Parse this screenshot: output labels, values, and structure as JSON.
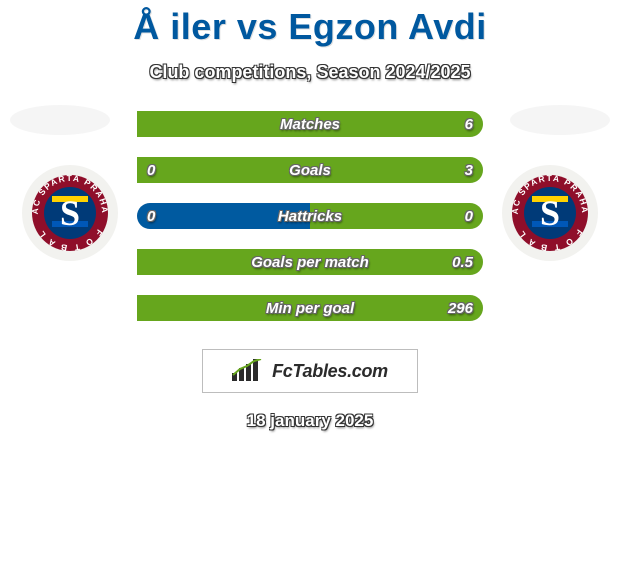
{
  "title": "Å iler vs Egzon Avdi",
  "subtitle": "Club competitions, Season 2024/2025",
  "date": "18 january 2025",
  "logo_text": "FcTables.com",
  "colors": {
    "player_left": "#005aa0",
    "player_right": "#66a61d",
    "bar_bg": "#dedede",
    "title": "#00589f",
    "ellipse": "#f5f5f5"
  },
  "crest": {
    "outer_bg": "#f2f2ef",
    "ring": "#8f0e2a",
    "ring_text": "#ffffff",
    "center": "#003a78",
    "tricolor_top": "#ffd200",
    "tricolor_mid": "#ffffff",
    "tricolor_bot": "#0057b8",
    "letter": "#ffffff"
  },
  "bars": [
    {
      "label": "Matches",
      "left_val": "",
      "right_val": "6",
      "left_pct": 0,
      "right_pct": 100
    },
    {
      "label": "Goals",
      "left_val": "0",
      "right_val": "3",
      "left_pct": 0,
      "right_pct": 100
    },
    {
      "label": "Hattricks",
      "left_val": "0",
      "right_val": "0",
      "left_pct": 50,
      "right_pct": 50
    },
    {
      "label": "Goals per match",
      "left_val": "",
      "right_val": "0.5",
      "left_pct": 0,
      "right_pct": 100
    },
    {
      "label": "Min per goal",
      "left_val": "",
      "right_val": "296",
      "left_pct": 0,
      "right_pct": 100
    }
  ]
}
